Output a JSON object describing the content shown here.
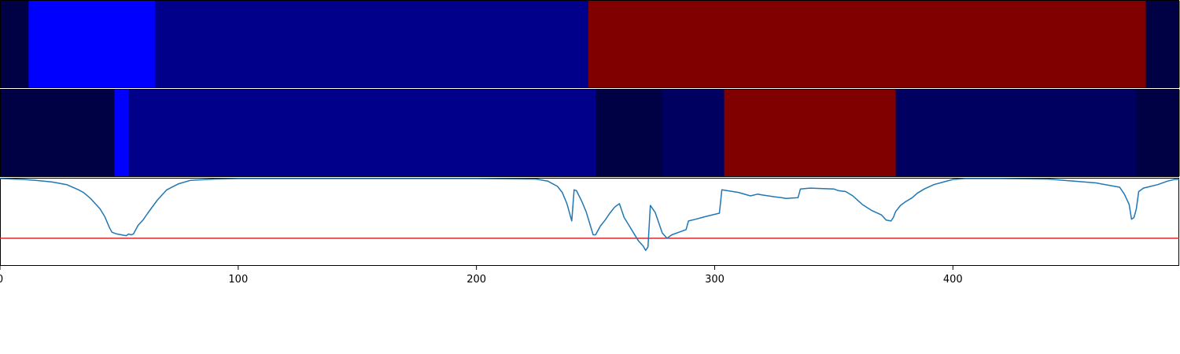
{
  "chart_data": [
    {
      "type": "heatmap",
      "xlim": [
        0,
        495
      ],
      "colormap": "seismic",
      "segments": [
        {
          "start": 0,
          "end": 12,
          "color": "#000045"
        },
        {
          "start": 12,
          "end": 65,
          "color": "#0000ff"
        },
        {
          "start": 65,
          "end": 247,
          "color": "#00008b"
        },
        {
          "start": 247,
          "end": 481,
          "color": "#800000"
        },
        {
          "start": 481,
          "end": 495,
          "color": "#000045"
        }
      ]
    },
    {
      "type": "heatmap",
      "xlim": [
        0,
        495
      ],
      "colormap": "seismic",
      "segments": [
        {
          "start": 0,
          "end": 48,
          "color": "#000045"
        },
        {
          "start": 48,
          "end": 54,
          "color": "#0000ff"
        },
        {
          "start": 54,
          "end": 250,
          "color": "#00008b"
        },
        {
          "start": 250,
          "end": 278,
          "color": "#000045"
        },
        {
          "start": 278,
          "end": 304,
          "color": "#000060"
        },
        {
          "start": 304,
          "end": 376,
          "color": "#800000"
        },
        {
          "start": 376,
          "end": 477,
          "color": "#000060"
        },
        {
          "start": 477,
          "end": 495,
          "color": "#000045"
        }
      ]
    },
    {
      "type": "line",
      "xlim": [
        0,
        495
      ],
      "ylim": [
        0,
        1
      ],
      "x_ticks": [
        0,
        100,
        200,
        300,
        400
      ],
      "threshold": {
        "value": 0.31,
        "color": "#d62728"
      },
      "series": [
        {
          "color": "#1f77b4",
          "x": [
            0,
            10,
            15,
            22,
            28,
            33,
            35,
            38,
            42,
            44,
            46,
            47,
            49,
            51,
            53,
            54,
            55,
            56,
            58,
            60,
            62,
            66,
            70,
            75,
            80,
            90,
            100,
            150,
            200,
            225,
            230,
            234,
            236,
            238,
            240,
            241,
            242,
            244,
            246,
            248,
            249,
            250,
            252,
            254,
            256,
            258,
            260,
            262,
            264,
            266,
            268,
            270,
            271,
            272,
            273,
            275,
            278,
            280,
            282,
            285,
            288,
            289,
            292,
            296,
            302,
            303,
            310,
            315,
            318,
            320,
            325,
            328,
            330,
            335,
            336,
            340,
            350,
            352,
            355,
            358,
            362,
            366,
            370,
            372,
            374,
            375,
            376,
            378,
            380,
            383,
            385,
            388,
            392,
            396,
            400,
            405,
            410,
            415,
            420,
            440,
            460,
            470,
            472,
            474,
            475,
            476,
            477,
            478,
            480,
            483,
            486,
            490,
            493,
            495
          ],
          "y": [
            1.0,
            0.99,
            0.98,
            0.96,
            0.93,
            0.87,
            0.84,
            0.77,
            0.65,
            0.56,
            0.43,
            0.38,
            0.36,
            0.35,
            0.34,
            0.36,
            0.35,
            0.36,
            0.46,
            0.52,
            0.6,
            0.75,
            0.87,
            0.94,
            0.98,
            0.995,
            1.0,
            1.0,
            1.0,
            0.995,
            0.97,
            0.91,
            0.84,
            0.71,
            0.51,
            0.87,
            0.86,
            0.75,
            0.62,
            0.44,
            0.35,
            0.35,
            0.45,
            0.52,
            0.6,
            0.67,
            0.71,
            0.55,
            0.46,
            0.37,
            0.28,
            0.22,
            0.17,
            0.21,
            0.69,
            0.61,
            0.37,
            0.31,
            0.35,
            0.38,
            0.41,
            0.51,
            0.53,
            0.56,
            0.6,
            0.87,
            0.84,
            0.8,
            0.82,
            0.81,
            0.79,
            0.78,
            0.77,
            0.78,
            0.88,
            0.89,
            0.88,
            0.86,
            0.85,
            0.8,
            0.7,
            0.63,
            0.58,
            0.52,
            0.51,
            0.55,
            0.62,
            0.69,
            0.73,
            0.78,
            0.83,
            0.88,
            0.93,
            0.96,
            0.99,
            1.0,
            1.0,
            1.0,
            1.0,
            0.995,
            0.95,
            0.9,
            0.82,
            0.7,
            0.53,
            0.55,
            0.65,
            0.85,
            0.89,
            0.91,
            0.93,
            0.97,
            0.99,
            0.99
          ]
        }
      ]
    }
  ]
}
